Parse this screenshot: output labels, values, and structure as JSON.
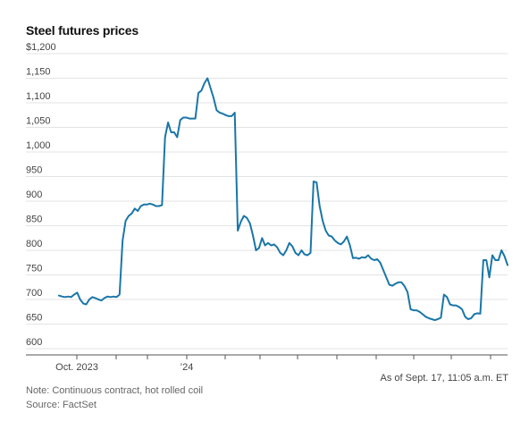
{
  "title": "Steel futures prices",
  "note": "Note: Continuous contract, hot rolled coil",
  "source": "Source: FactSet",
  "as_of": "As of Sept. 17, 11:05 a.m. ET",
  "colors": {
    "line": "#1a76a8",
    "grid": "#e3e3e3",
    "axis": "#555555",
    "text": "#444444"
  },
  "chart_data": {
    "type": "line",
    "title": "Steel futures prices",
    "xlabel": "",
    "ylabel": "",
    "ylim": [
      600,
      1200
    ],
    "y_ticks": [
      600,
      650,
      700,
      750,
      800,
      850,
      900,
      950,
      1000,
      1050,
      1100,
      1150,
      1200
    ],
    "y_tick_labels": [
      "600",
      "650",
      "700",
      "750",
      "800",
      "850",
      "900",
      "950",
      "1,000",
      "1,050",
      "1,100",
      "1,150",
      "$1,200"
    ],
    "x_tick_labels": [
      "Oct. 2023",
      "’24"
    ],
    "grid": true,
    "series": [
      {
        "values": [
          708,
          706,
          705,
          706,
          705,
          710,
          714,
          700,
          692,
          690,
          700,
          705,
          703,
          700,
          698,
          703,
          706,
          705,
          706,
          705,
          710,
          820,
          860,
          870,
          875,
          885,
          880,
          890,
          893,
          893,
          895,
          893,
          890,
          890,
          892,
          1030,
          1060,
          1040,
          1040,
          1030,
          1065,
          1070,
          1070,
          1068,
          1068,
          1068,
          1120,
          1125,
          1140,
          1150,
          1130,
          1110,
          1085,
          1080,
          1078,
          1075,
          1073,
          1073,
          1080,
          840,
          858,
          870,
          866,
          855,
          830,
          800,
          805,
          825,
          810,
          815,
          810,
          812,
          806,
          795,
          790,
          800,
          815,
          808,
          795,
          790,
          800,
          792,
          790,
          795,
          940,
          938,
          890,
          860,
          840,
          830,
          828,
          820,
          815,
          812,
          818,
          828,
          810,
          784,
          785,
          783,
          786,
          785,
          790,
          783,
          780,
          782,
          775,
          760,
          745,
          730,
          728,
          732,
          735,
          735,
          727,
          715,
          680,
          678,
          678,
          675,
          670,
          665,
          662,
          660,
          658,
          660,
          663,
          710,
          705,
          690,
          688,
          688,
          685,
          680,
          665,
          660,
          662,
          670,
          672,
          671,
          780,
          780,
          745,
          790,
          780,
          780,
          800,
          788,
          770
        ]
      }
    ]
  }
}
